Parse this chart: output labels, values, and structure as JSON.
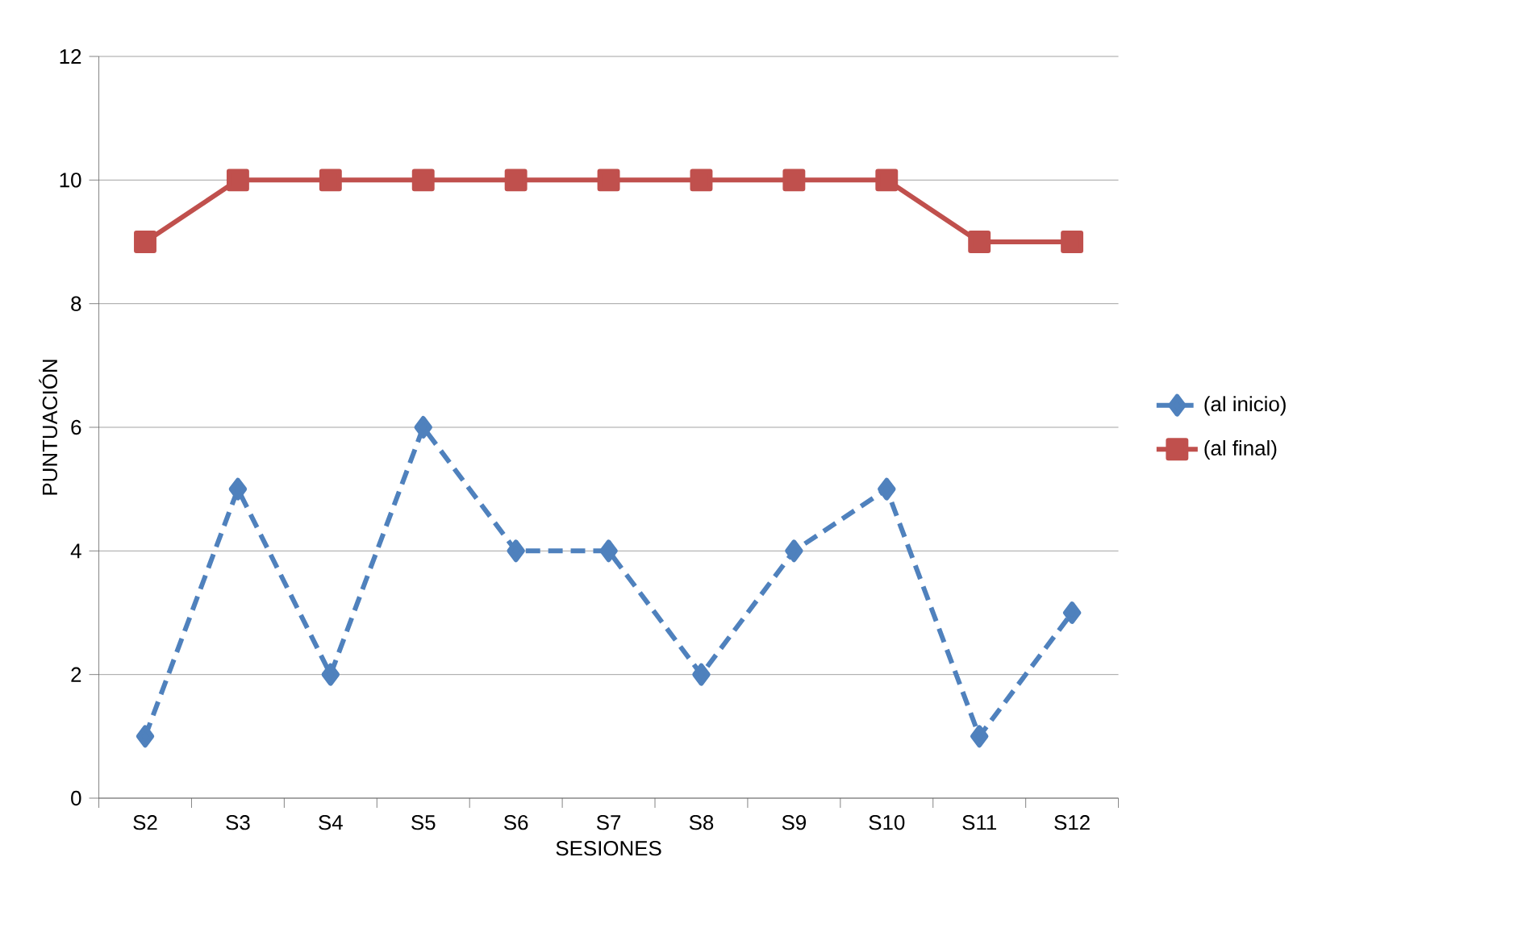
{
  "chart_data": {
    "type": "line",
    "xlabel": "SESIONES",
    "ylabel": "PUNTUACIÓN",
    "categories": [
      "S2",
      "S3",
      "S4",
      "S5",
      "S6",
      "S7",
      "S8",
      "S9",
      "S10",
      "S11",
      "S12"
    ],
    "series": [
      {
        "name": "(al inicio)",
        "color": "#4f81bd",
        "marker": "diamond",
        "line_style": "dashed",
        "values": [
          1,
          5,
          2,
          6,
          4,
          4,
          2,
          4,
          5,
          1,
          3
        ]
      },
      {
        "name": "(al final)",
        "color": "#c0504d",
        "marker": "square",
        "line_style": "solid",
        "values": [
          9,
          10,
          10,
          10,
          10,
          10,
          10,
          10,
          10,
          9,
          9
        ]
      }
    ],
    "ylim": [
      0,
      12
    ],
    "yticks": [
      0,
      2,
      4,
      6,
      8,
      10,
      12
    ],
    "grid": "y",
    "legend": "right"
  }
}
